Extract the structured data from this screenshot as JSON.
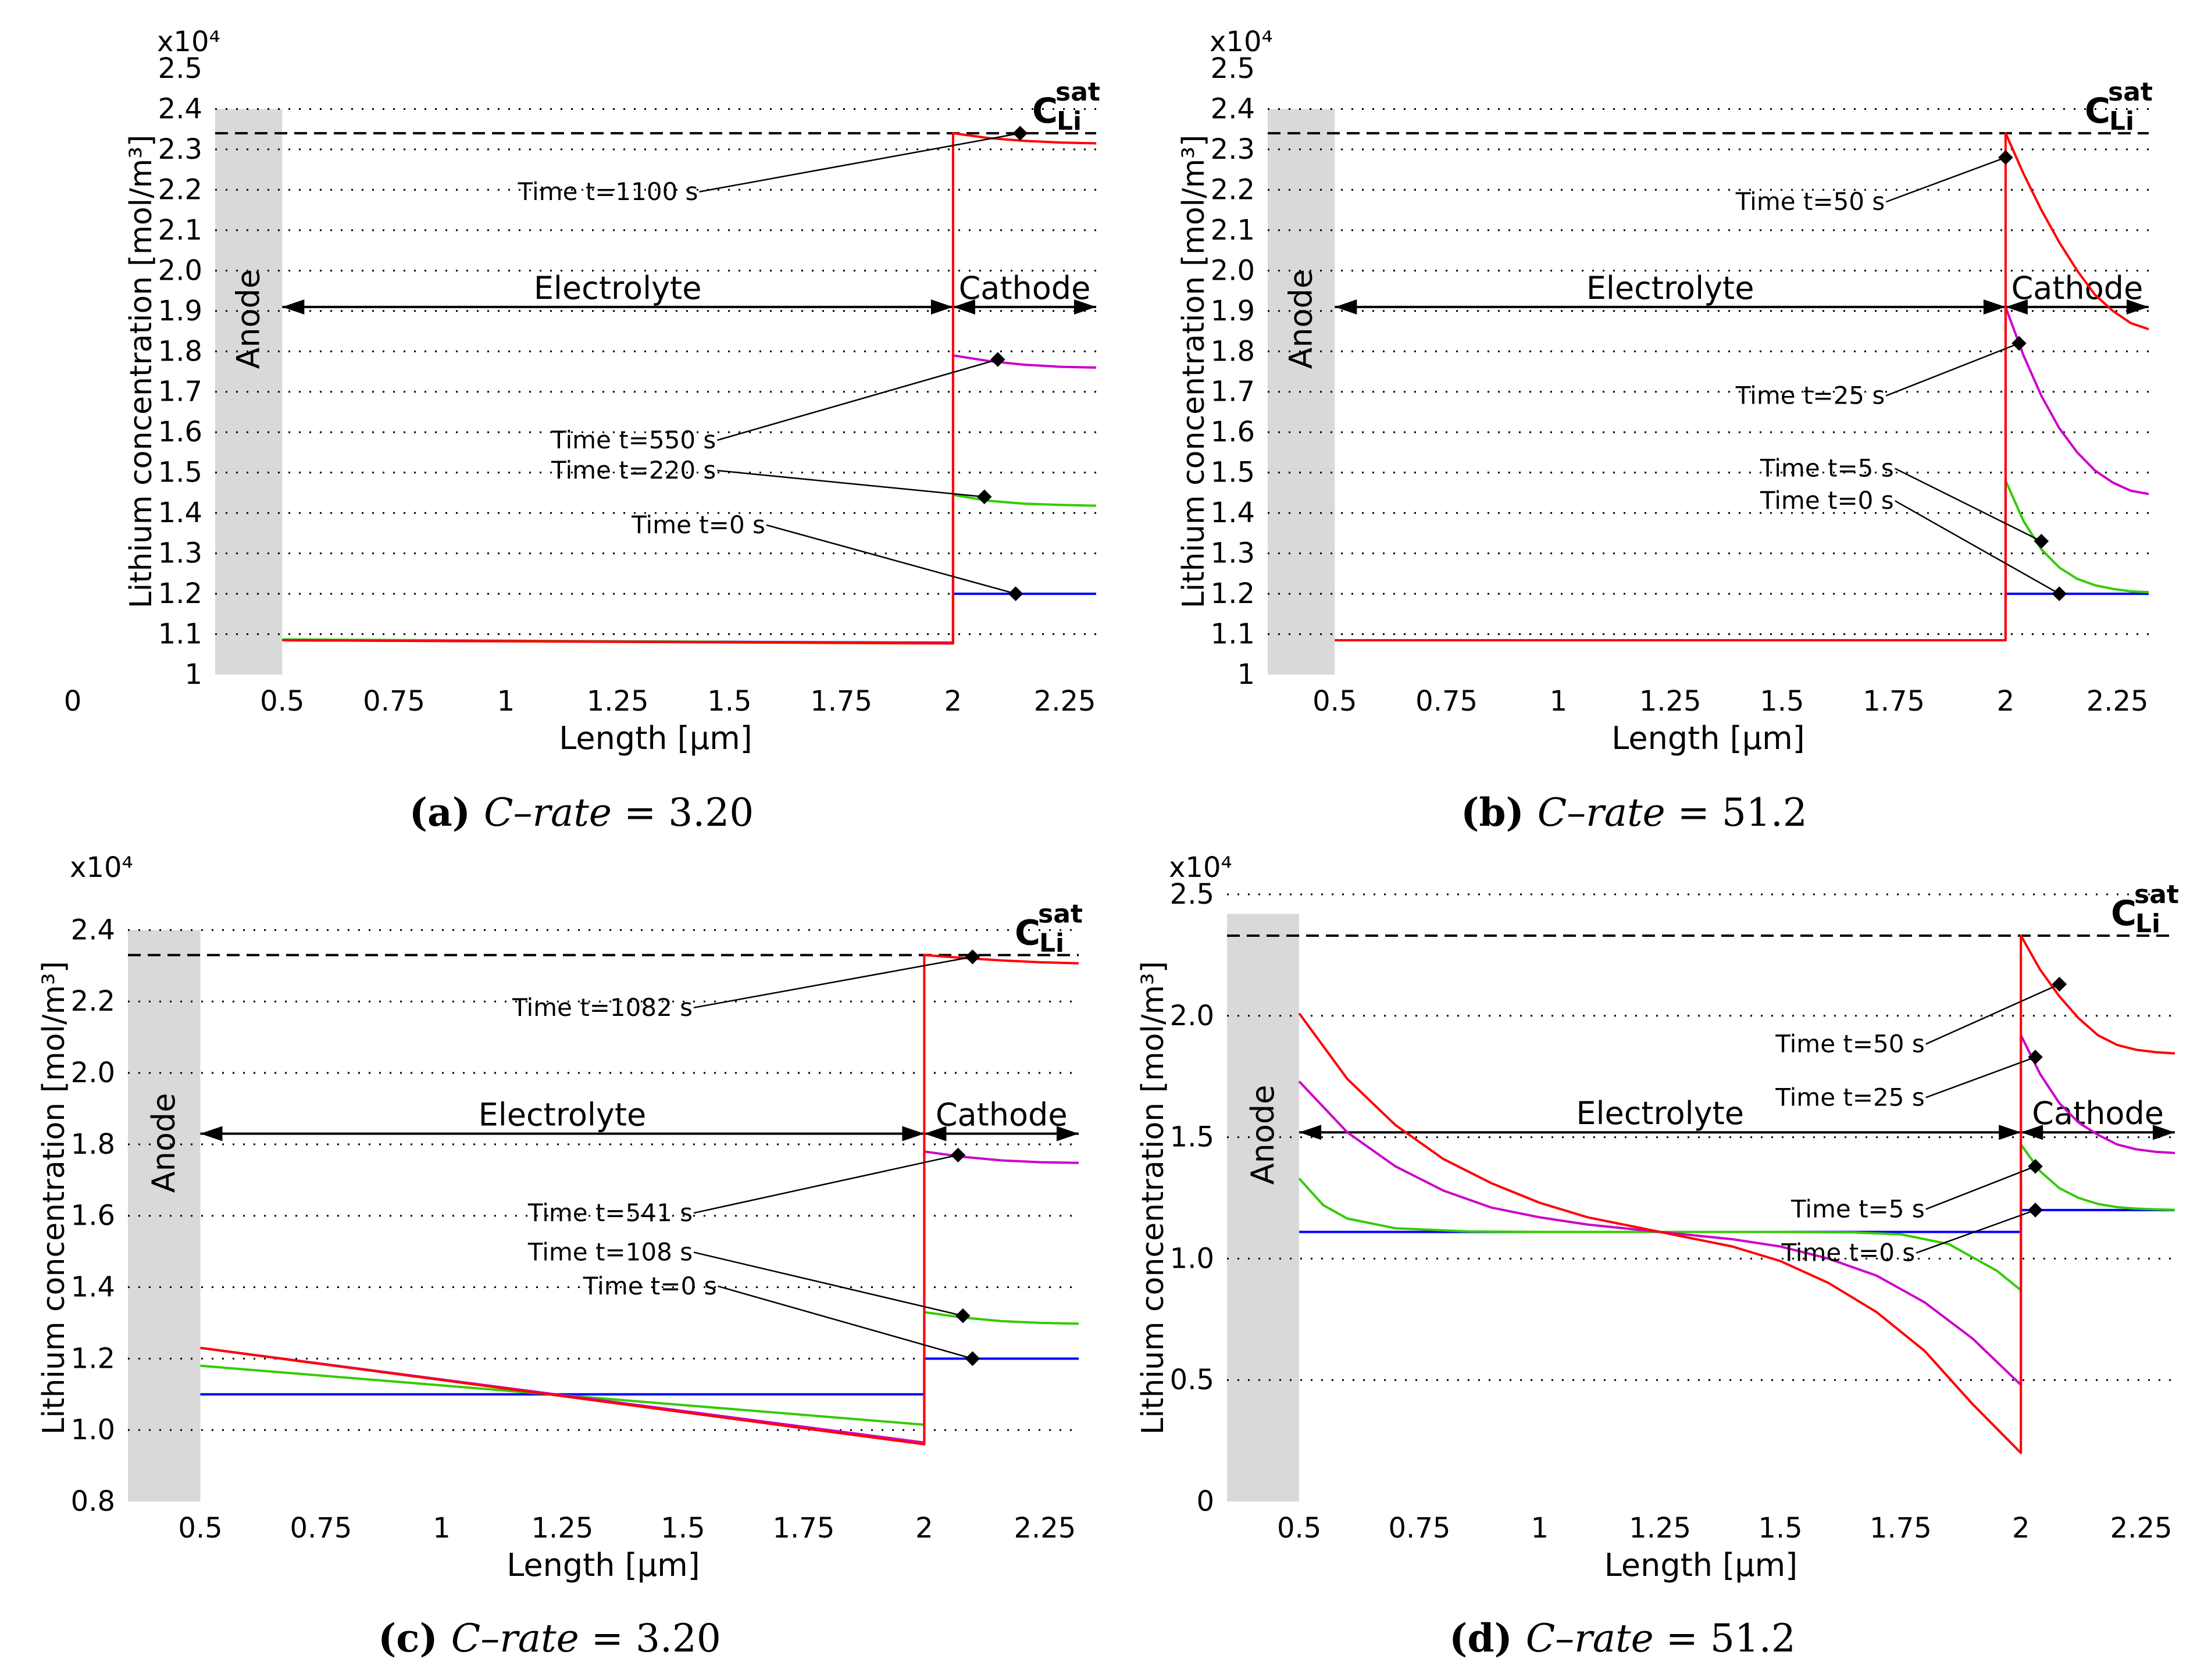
{
  "figure": {
    "panels": [
      {
        "label": "(a)",
        "caption_var": "C–rate",
        "caption_eq": "=",
        "caption_value": "3.20"
      },
      {
        "label": "(b)",
        "caption_var": "C–rate",
        "caption_eq": "=",
        "caption_value": "51.2"
      },
      {
        "label": "(c)",
        "caption_var": "C–rate",
        "caption_eq": "=",
        "caption_value": "3.20"
      },
      {
        "label": "(d)",
        "caption_var": "C–rate",
        "caption_eq": "=",
        "caption_value": "51.2"
      }
    ]
  },
  "colors": {
    "t0": "#0000ff",
    "t1": "#33cc00",
    "t2": "#cc00cc",
    "t3": "#ff0000",
    "anode_fill": "#d9d9d9",
    "grid": "#000000",
    "saturation_line": "#000000"
  },
  "chart_data": [
    {
      "type": "line",
      "panel": "a",
      "xlabel": "Length [µm]",
      "ylabel": "Lithium concentration [mol/m³]",
      "y_multiplier": "x10⁴",
      "xlim": [
        0.35,
        2.32
      ],
      "ylim": [
        1.0,
        2.5
      ],
      "xticks": [
        0.5,
        0.75,
        1,
        1.25,
        1.5,
        1.75,
        2,
        2.25
      ],
      "xtick_labels": [
        "0.5",
        "0.75",
        "1",
        "1.25",
        "1.5",
        "1.75",
        "2",
        "2.25"
      ],
      "extra_x_label": "0",
      "yticks": [
        1.0,
        1.1,
        1.2,
        1.3,
        1.4,
        1.5,
        1.6,
        1.7,
        1.8,
        1.9,
        2.0,
        2.1,
        2.2,
        2.3,
        2.4,
        2.5
      ],
      "ytick_labels": [
        "1",
        "1.1",
        "1.2",
        "1.3",
        "1.4",
        "1.5",
        "1.6",
        "1.7",
        "1.8",
        "1.9",
        "2.0",
        "2.1",
        "2.2",
        "2.3",
        "2.4",
        "2.5"
      ],
      "grid_y": [
        1.1,
        1.2,
        1.3,
        1.4,
        1.5,
        1.6,
        1.7,
        1.8,
        1.9,
        2.0,
        2.1,
        2.2,
        2.3,
        2.4
      ],
      "saturation_value": 2.34,
      "saturation_label": "C",
      "saturation_sub": "Li",
      "saturation_sup": "sat",
      "anode": {
        "label": "Anode",
        "x0": 0.35,
        "x1": 0.5,
        "ytop": 2.4
      },
      "electrolyte_label": "Electrolyte",
      "cathode_label": "Cathode",
      "region_arrow_y": 1.91,
      "interface_x": 2.0,
      "series": [
        {
          "name": "Time t=0 s",
          "color": "t0",
          "x": [
            0.5,
            2.0,
            2.0,
            2.32
          ],
          "y": [
            1.085,
            1.079,
            1.2,
            1.2
          ]
        },
        {
          "name": "Time t=220 s",
          "color": "t1",
          "x": [
            0.5,
            2.0,
            2.0,
            2.08,
            2.16,
            2.24,
            2.32
          ],
          "y": [
            1.087,
            1.078,
            1.445,
            1.43,
            1.423,
            1.42,
            1.418
          ]
        },
        {
          "name": "Time t=550 s",
          "color": "t2",
          "x": [
            0.5,
            2.0,
            2.0,
            2.08,
            2.16,
            2.24,
            2.32
          ],
          "y": [
            1.085,
            1.078,
            1.79,
            1.776,
            1.767,
            1.762,
            1.76
          ]
        },
        {
          "name": "Time t=1100 s",
          "color": "t3",
          "x": [
            0.5,
            2.0,
            2.0,
            2.08,
            2.16,
            2.24,
            2.32
          ],
          "y": [
            1.085,
            1.077,
            2.34,
            2.328,
            2.321,
            2.317,
            2.315
          ]
        }
      ],
      "annotations": [
        {
          "text": "Time t=1100 s",
          "x": 2.15,
          "y": 2.34,
          "label_x": 1.43,
          "label_y": 2.175
        },
        {
          "text": "Time t=550 s",
          "x": 2.1,
          "y": 1.78,
          "label_x": 1.47,
          "label_y": 1.56
        },
        {
          "text": "Time t=220 s",
          "x": 2.07,
          "y": 1.44,
          "label_x": 1.47,
          "label_y": 1.485
        },
        {
          "text": "Time t=0 s",
          "x": 2.14,
          "y": 1.2,
          "label_x": 1.58,
          "label_y": 1.35
        }
      ]
    },
    {
      "type": "line",
      "panel": "b",
      "xlabel": "Length [µm]",
      "ylabel": "Lithium concentration [mol/m³]",
      "y_multiplier": "x10⁴",
      "xlim": [
        0.35,
        2.32
      ],
      "ylim": [
        1.0,
        2.5
      ],
      "xticks": [
        0.5,
        0.75,
        1,
        1.25,
        1.5,
        1.75,
        2,
        2.25
      ],
      "xtick_labels": [
        "0.5",
        "0.75",
        "1",
        "1.25",
        "1.5",
        "1.75",
        "2",
        "2.25"
      ],
      "yticks": [
        1.0,
        1.1,
        1.2,
        1.3,
        1.4,
        1.5,
        1.6,
        1.7,
        1.8,
        1.9,
        2.0,
        2.1,
        2.2,
        2.3,
        2.4,
        2.5
      ],
      "ytick_labels": [
        "1",
        "1.1",
        "1.2",
        "1.3",
        "1.4",
        "1.5",
        "1.6",
        "1.7",
        "1.8",
        "1.9",
        "2.0",
        "2.1",
        "2.2",
        "2.3",
        "2.4",
        "2.5"
      ],
      "grid_y": [
        1.1,
        1.2,
        1.3,
        1.4,
        1.5,
        1.6,
        1.7,
        1.8,
        1.9,
        2.0,
        2.1,
        2.2,
        2.3,
        2.4
      ],
      "saturation_value": 2.34,
      "saturation_label": "C",
      "saturation_sub": "Li",
      "saturation_sup": "sat",
      "anode": {
        "label": "Anode",
        "x0": 0.35,
        "x1": 0.5,
        "ytop": 2.4
      },
      "electrolyte_label": "Electrolyte",
      "cathode_label": "Cathode",
      "region_arrow_y": 1.91,
      "interface_x": 2.0,
      "series": [
        {
          "name": "Time t=0 s",
          "color": "t0",
          "x": [
            0.5,
            2.0,
            2.0,
            2.32
          ],
          "y": [
            1.085,
            1.085,
            1.2,
            1.2
          ]
        },
        {
          "name": "Time t=5 s",
          "color": "t1",
          "x": [
            0.5,
            2.0,
            2.0,
            2.04,
            2.08,
            2.12,
            2.16,
            2.2,
            2.24,
            2.28,
            2.32
          ],
          "y": [
            1.085,
            1.085,
            1.48,
            1.38,
            1.31,
            1.265,
            1.237,
            1.221,
            1.212,
            1.206,
            1.204
          ]
        },
        {
          "name": "Time t=25 s",
          "color": "t2",
          "x": [
            0.5,
            2.0,
            2.0,
            2.04,
            2.08,
            2.12,
            2.16,
            2.2,
            2.24,
            2.28,
            2.32
          ],
          "y": [
            1.085,
            1.085,
            1.91,
            1.79,
            1.69,
            1.61,
            1.55,
            1.505,
            1.475,
            1.455,
            1.447
          ]
        },
        {
          "name": "Time t=50 s",
          "color": "t3",
          "x": [
            0.5,
            2.0,
            2.0,
            2.04,
            2.08,
            2.12,
            2.16,
            2.2,
            2.24,
            2.28,
            2.32
          ],
          "y": [
            1.085,
            1.085,
            2.34,
            2.24,
            2.15,
            2.07,
            2.0,
            1.94,
            1.9,
            1.87,
            1.855
          ]
        }
      ],
      "annotations": [
        {
          "text": "Time t=50 s",
          "x": 2.0,
          "y": 2.28,
          "label_x": 1.73,
          "label_y": 2.15
        },
        {
          "text": "Time t=25 s",
          "x": 2.03,
          "y": 1.82,
          "label_x": 1.73,
          "label_y": 1.67
        },
        {
          "text": "Time t=5 s",
          "x": 2.08,
          "y": 1.33,
          "label_x": 1.75,
          "label_y": 1.49
        },
        {
          "text": "Time t=0 s",
          "x": 2.12,
          "y": 1.2,
          "label_x": 1.75,
          "label_y": 1.41
        }
      ]
    },
    {
      "type": "line",
      "panel": "c",
      "xlabel": "Length [µm]",
      "ylabel": "Lithium concentration [mol/m³]",
      "y_multiplier": "x10⁴",
      "xlim": [
        0.35,
        2.32
      ],
      "ylim": [
        0.8,
        2.5
      ],
      "xticks": [
        0.5,
        0.75,
        1,
        1.25,
        1.5,
        1.75,
        2,
        2.25
      ],
      "xtick_labels": [
        "0.5",
        "0.75",
        "1",
        "1.25",
        "1.5",
        "1.75",
        "2",
        "2.25"
      ],
      "yticks": [
        0.8,
        1.0,
        1.2,
        1.4,
        1.6,
        1.8,
        2.0,
        2.2,
        2.4
      ],
      "ytick_labels": [
        "0.8",
        "1.0",
        "1.2",
        "1.4",
        "1.6",
        "1.8",
        "2.0",
        "2.2",
        "2.4"
      ],
      "grid_y": [
        1.0,
        1.2,
        1.4,
        1.6,
        1.8,
        2.0,
        2.2,
        2.4
      ],
      "saturation_value": 2.33,
      "saturation_label": "C",
      "saturation_sub": "Li",
      "saturation_sup": "sat",
      "anode": {
        "label": "Anode",
        "x0": 0.35,
        "x1": 0.5,
        "ytop": 2.4
      },
      "electrolyte_label": "Electrolyte",
      "cathode_label": "Cathode",
      "region_arrow_y": 1.83,
      "interface_x": 2.0,
      "series": [
        {
          "name": "Time t=0 s",
          "color": "t0",
          "x": [
            0.5,
            2.0,
            2.0,
            2.32
          ],
          "y": [
            1.1,
            1.1,
            1.2,
            1.2
          ]
        },
        {
          "name": "Time t=108 s",
          "color": "t1",
          "x": [
            0.5,
            2.0,
            2.0,
            2.08,
            2.16,
            2.24,
            2.32
          ],
          "y": [
            1.18,
            1.015,
            1.33,
            1.315,
            1.305,
            1.3,
            1.298
          ]
        },
        {
          "name": "Time t=541 s",
          "color": "t2",
          "x": [
            0.5,
            2.0,
            2.0,
            2.08,
            2.16,
            2.24,
            2.32
          ],
          "y": [
            1.23,
            0.965,
            1.78,
            1.765,
            1.755,
            1.75,
            1.748
          ]
        },
        {
          "name": "Time t=1082 s",
          "color": "t3",
          "x": [
            0.5,
            2.0,
            2.0,
            2.08,
            2.16,
            2.24,
            2.32
          ],
          "y": [
            1.23,
            0.96,
            2.33,
            2.322,
            2.315,
            2.31,
            2.307
          ]
        }
      ],
      "annotations": [
        {
          "text": "Time t=1082 s",
          "x": 2.1,
          "y": 2.325,
          "label_x": 1.52,
          "label_y": 2.16
        },
        {
          "text": "Time t=541 s",
          "x": 2.07,
          "y": 1.77,
          "label_x": 1.52,
          "label_y": 1.585
        },
        {
          "text": "Time t=108 s",
          "x": 2.08,
          "y": 1.32,
          "label_x": 1.52,
          "label_y": 1.475
        },
        {
          "text": "Time t=0 s",
          "x": 2.1,
          "y": 1.2,
          "label_x": 1.57,
          "label_y": 1.38
        }
      ]
    },
    {
      "type": "line",
      "panel": "d",
      "xlabel": "Length [µm]",
      "ylabel": "Lithium concentration [mol/m³]",
      "y_multiplier": "x10⁴",
      "xlim": [
        0.35,
        2.32
      ],
      "ylim": [
        0.0,
        2.5
      ],
      "xticks": [
        0.5,
        0.75,
        1,
        1.25,
        1.5,
        1.75,
        2,
        2.25
      ],
      "xtick_labels": [
        "0.5",
        "0.75",
        "1",
        "1.25",
        "1.5",
        "1.75",
        "2",
        "2.25"
      ],
      "yticks": [
        0.0,
        0.5,
        1.0,
        1.5,
        2.0,
        2.5
      ],
      "ytick_labels": [
        "0",
        "0.5",
        "1.0",
        "1.5",
        "2.0",
        "2.5"
      ],
      "grid_y": [
        0.5,
        1.0,
        1.5,
        2.0,
        2.5
      ],
      "saturation_value": 2.33,
      "saturation_label": "C",
      "saturation_sub": "Li",
      "saturation_sup": "sat",
      "anode": {
        "label": "Anode",
        "x0": 0.35,
        "x1": 0.5,
        "ytop": 2.42
      },
      "electrolyte_label": "Electrolyte",
      "cathode_label": "Cathode",
      "region_arrow_y": 1.52,
      "interface_x": 2.0,
      "series": [
        {
          "name": "Time t=0 s",
          "color": "t0",
          "x": [
            0.5,
            2.0,
            2.0,
            2.32
          ],
          "y": [
            1.11,
            1.11,
            1.2,
            1.2
          ]
        },
        {
          "name": "Time t=5 s",
          "color": "t1",
          "x": [
            0.5,
            0.55,
            0.6,
            0.7,
            0.85,
            1.0,
            1.25,
            1.5,
            1.65,
            1.75,
            1.85,
            1.95,
            2.0,
            2.0,
            2.04,
            2.08,
            2.12,
            2.16,
            2.2,
            2.24,
            2.28,
            2.32
          ],
          "y": [
            1.33,
            1.22,
            1.165,
            1.125,
            1.112,
            1.11,
            1.11,
            1.11,
            1.108,
            1.1,
            1.06,
            0.95,
            0.87,
            1.47,
            1.36,
            1.29,
            1.25,
            1.225,
            1.212,
            1.206,
            1.203,
            1.201
          ]
        },
        {
          "name": "Time t=25 s",
          "color": "t2",
          "x": [
            0.5,
            0.6,
            0.7,
            0.8,
            0.9,
            1.0,
            1.1,
            1.25,
            1.4,
            1.5,
            1.6,
            1.7,
            1.8,
            1.9,
            2.0,
            2.0,
            2.04,
            2.08,
            2.12,
            2.16,
            2.2,
            2.24,
            2.28,
            2.32
          ],
          "y": [
            1.73,
            1.52,
            1.38,
            1.28,
            1.21,
            1.17,
            1.14,
            1.11,
            1.08,
            1.05,
            1.0,
            0.93,
            0.82,
            0.67,
            0.48,
            1.92,
            1.76,
            1.64,
            1.56,
            1.51,
            1.47,
            1.45,
            1.44,
            1.435
          ]
        },
        {
          "name": "Time t=50 s",
          "color": "t3",
          "x": [
            0.5,
            0.6,
            0.7,
            0.8,
            0.9,
            1.0,
            1.1,
            1.25,
            1.4,
            1.5,
            1.6,
            1.7,
            1.8,
            1.9,
            2.0,
            2.0,
            2.04,
            2.08,
            2.12,
            2.16,
            2.2,
            2.24,
            2.28,
            2.32
          ],
          "y": [
            2.01,
            1.74,
            1.55,
            1.41,
            1.31,
            1.23,
            1.17,
            1.11,
            1.05,
            0.99,
            0.9,
            0.78,
            0.62,
            0.4,
            0.2,
            2.33,
            2.19,
            2.08,
            1.99,
            1.92,
            1.88,
            1.86,
            1.85,
            1.845
          ]
        }
      ],
      "annotations": [
        {
          "text": "Time t=50 s",
          "x": 2.08,
          "y": 2.13,
          "label_x": 1.8,
          "label_y": 1.85
        },
        {
          "text": "Time t=25 s",
          "x": 2.03,
          "y": 1.83,
          "label_x": 1.8,
          "label_y": 1.63
        },
        {
          "text": "Time t=5 s",
          "x": 2.03,
          "y": 1.38,
          "label_x": 1.8,
          "label_y": 1.17
        },
        {
          "text": "Time t=0 s",
          "x": 2.03,
          "y": 1.2,
          "label_x": 1.78,
          "label_y": 0.99
        }
      ]
    }
  ]
}
